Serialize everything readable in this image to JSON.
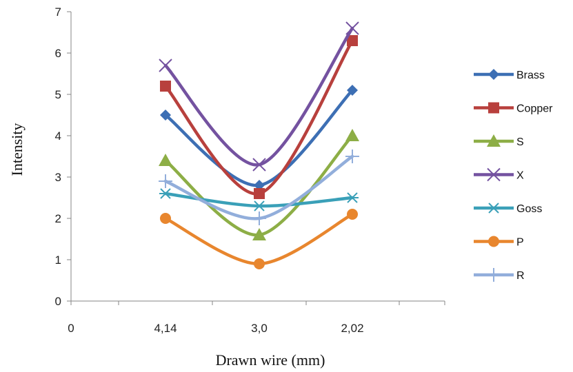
{
  "chart_data": {
    "type": "line",
    "categories": [
      "4,14",
      "3,0",
      "2,02"
    ],
    "x_axis_labels": [
      "0",
      "4,14",
      "3,0",
      "2,02"
    ],
    "xlabel": "Drawn wire (mm)",
    "ylabel": "Intensity",
    "ylim": [
      0,
      7
    ],
    "yticks": [
      "0",
      "1",
      "2",
      "3",
      "4",
      "5",
      "6",
      "7"
    ],
    "grid": false,
    "legend_position": "right",
    "smooth": true,
    "series": [
      {
        "name": "Brass",
        "values": [
          4.5,
          2.8,
          5.1
        ],
        "color": "#3d6fb4",
        "marker": "diamond"
      },
      {
        "name": "Copper",
        "values": [
          5.2,
          2.6,
          6.3
        ],
        "color": "#b8403d",
        "marker": "square"
      },
      {
        "name": "S",
        "values": [
          3.4,
          1.6,
          4.0
        ],
        "color": "#8dae46",
        "marker": "triangle"
      },
      {
        "name": "X",
        "values": [
          5.7,
          3.3,
          6.6
        ],
        "color": "#7452a0",
        "marker": "x"
      },
      {
        "name": "Goss",
        "values": [
          2.6,
          2.3,
          2.5
        ],
        "color": "#3aa0b8",
        "marker": "star"
      },
      {
        "name": "P",
        "values": [
          2.0,
          0.9,
          2.1
        ],
        "color": "#e8862e",
        "marker": "circle"
      },
      {
        "name": "R",
        "values": [
          2.9,
          2.0,
          3.5
        ],
        "color": "#92aedb",
        "marker": "plus"
      }
    ]
  }
}
